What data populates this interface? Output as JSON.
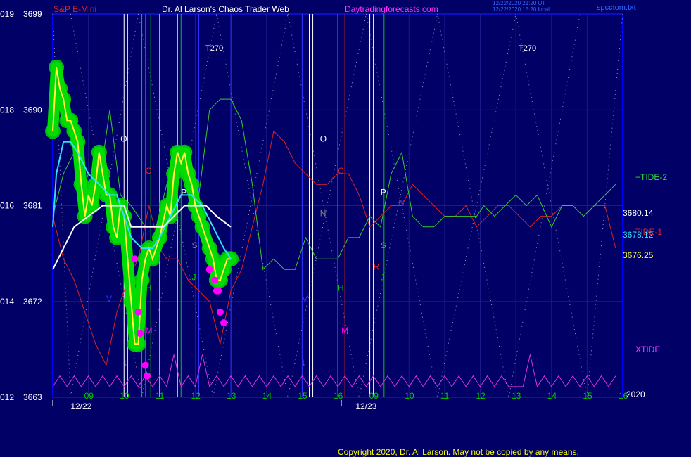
{
  "header": {
    "instrument": "S&P E-Mini",
    "title": "Dr. Al Larson's Chaos Trader Web",
    "site": "Daytradingforecasts.com",
    "timestamp_1": "12/22/2020 21:20 UT",
    "timestamp_2": "12/22/2020 15:20 local",
    "file": "spcctom.txt"
  },
  "footer": {
    "copyright": "Copyright 2020, Dr. Al Larson. May not be copied by any means."
  },
  "colors": {
    "background": "#000066",
    "price_green": "#00dd00",
    "price_yellow": "#ffff33",
    "price_magenta": "#ff00ff",
    "ma_cyan": "#33ddff",
    "ma_white": "#ffffff",
    "tide2": "#33cc33",
    "tide1": "#dd2222",
    "xtide": "#dd33dd",
    "grid": "#1a1a88",
    "frame": "#0000ff"
  },
  "chart_data": {
    "type": "line",
    "title": "S&P E-Mini",
    "ylim": [
      3663,
      3699
    ],
    "y_ticks": [
      {
        "left": "019",
        "value": "3699"
      },
      {
        "left": "018",
        "value": "3690"
      },
      {
        "left": "016",
        "value": "3681"
      },
      {
        "left": "014",
        "value": "3672"
      },
      {
        "left": "012",
        "value": "3663"
      }
    ],
    "x_hour_ticks": [
      "09",
      "10",
      "11",
      "12",
      "13",
      "14",
      "15",
      "16",
      "09",
      "10",
      "11",
      "12",
      "13",
      "14",
      "15",
      "16"
    ],
    "date_labels": [
      "12/22",
      "12/23"
    ],
    "year_label": "2020",
    "price_labels": {
      "upper_ma": "3680.14",
      "lower_ma": "3678.12",
      "last_price": "3676.25"
    },
    "series": [
      {
        "name": "+TIDE-2",
        "color": "#33cc33"
      },
      {
        "name": "TIDE-1",
        "color": "#dd2222"
      },
      {
        "name": "XTIDE",
        "color": "#dd33dd"
      }
    ],
    "price_path": [
      [
        0.0,
        3688
      ],
      [
        0.1,
        3694
      ],
      [
        0.2,
        3692
      ],
      [
        0.3,
        3691
      ],
      [
        0.4,
        3689
      ],
      [
        0.5,
        3689
      ],
      [
        0.6,
        3688
      ],
      [
        0.7,
        3687
      ],
      [
        0.8,
        3683
      ],
      [
        0.9,
        3680
      ],
      [
        1.0,
        3682
      ],
      [
        1.1,
        3681
      ],
      [
        1.2,
        3683
      ],
      [
        1.3,
        3686
      ],
      [
        1.4,
        3684
      ],
      [
        1.5,
        3682
      ],
      [
        1.6,
        3682
      ],
      [
        1.7,
        3679
      ],
      [
        1.8,
        3678
      ],
      [
        1.9,
        3681
      ],
      [
        2.0,
        3680
      ],
      [
        2.2,
        3672
      ],
      [
        2.3,
        3668
      ],
      [
        2.4,
        3668
      ],
      [
        2.5,
        3674
      ],
      [
        2.6,
        3676
      ],
      [
        2.7,
        3677
      ],
      [
        2.8,
        3676
      ],
      [
        3.0,
        3678
      ],
      [
        3.2,
        3681
      ],
      [
        3.3,
        3680
      ],
      [
        3.4,
        3684
      ],
      [
        3.5,
        3686
      ],
      [
        3.6,
        3685
      ],
      [
        3.7,
        3686
      ],
      [
        3.8,
        3684
      ],
      [
        3.9,
        3683
      ],
      [
        4.0,
        3681
      ],
      [
        4.1,
        3680
      ],
      [
        4.2,
        3679
      ],
      [
        4.4,
        3677
      ],
      [
        4.5,
        3676
      ],
      [
        4.6,
        3674
      ],
      [
        4.7,
        3674
      ],
      [
        4.8,
        3675
      ],
      [
        4.9,
        3676
      ],
      [
        5.0,
        3676
      ]
    ],
    "ma_cyan": [
      [
        0.0,
        3679
      ],
      [
        0.1,
        3684
      ],
      [
        0.3,
        3687
      ],
      [
        0.5,
        3687
      ],
      [
        0.7,
        3686
      ],
      [
        1.0,
        3684
      ],
      [
        1.3,
        3683
      ],
      [
        1.6,
        3682
      ],
      [
        1.8,
        3682
      ],
      [
        2.0,
        3680
      ],
      [
        2.2,
        3678
      ],
      [
        2.5,
        3677
      ],
      [
        2.8,
        3677
      ],
      [
        3.0,
        3678
      ],
      [
        3.3,
        3680
      ],
      [
        3.6,
        3682
      ],
      [
        3.9,
        3682
      ],
      [
        4.2,
        3681
      ],
      [
        4.5,
        3679
      ],
      [
        4.8,
        3677
      ],
      [
        5.0,
        3676
      ]
    ],
    "ma_white": [
      [
        0.0,
        3675
      ],
      [
        0.3,
        3677
      ],
      [
        0.6,
        3679
      ],
      [
        1.0,
        3680
      ],
      [
        1.4,
        3681
      ],
      [
        1.8,
        3681
      ],
      [
        2.0,
        3681
      ],
      [
        2.2,
        3679
      ],
      [
        2.5,
        3679
      ],
      [
        2.8,
        3679
      ],
      [
        3.1,
        3679
      ],
      [
        3.4,
        3680
      ],
      [
        3.7,
        3681
      ],
      [
        4.0,
        3681
      ],
      [
        4.3,
        3681
      ],
      [
        4.6,
        3680
      ],
      [
        5.0,
        3679
      ]
    ],
    "tide2_path": [
      [
        0.0,
        3680
      ],
      [
        0.3,
        3684
      ],
      [
        0.6,
        3686
      ],
      [
        0.8,
        3682
      ],
      [
        1.0,
        3684
      ],
      [
        1.3,
        3683
      ],
      [
        1.6,
        3690
      ],
      [
        1.9,
        3682
      ],
      [
        2.2,
        3681
      ],
      [
        2.6,
        3679
      ],
      [
        2.9,
        3679
      ],
      [
        3.2,
        3683
      ],
      [
        3.5,
        3685
      ],
      [
        3.8,
        3682
      ],
      [
        4.1,
        3682
      ],
      [
        4.4,
        3690
      ],
      [
        4.7,
        3691
      ],
      [
        5.0,
        3691
      ],
      [
        5.3,
        3689
      ],
      [
        5.6,
        3683
      ],
      [
        5.9,
        3675
      ],
      [
        6.2,
        3676
      ],
      [
        6.5,
        3675
      ],
      [
        6.8,
        3675
      ],
      [
        7.1,
        3678
      ],
      [
        7.4,
        3676
      ],
      [
        7.7,
        3676
      ],
      [
        8.0,
        3676
      ],
      [
        8.3,
        3678
      ],
      [
        8.6,
        3678
      ],
      [
        8.9,
        3680
      ],
      [
        9.2,
        3679
      ],
      [
        9.5,
        3684
      ],
      [
        9.8,
        3686
      ],
      [
        10.1,
        3680
      ],
      [
        10.4,
        3679
      ],
      [
        10.7,
        3679
      ],
      [
        11.0,
        3680
      ],
      [
        11.3,
        3680
      ],
      [
        11.6,
        3680
      ],
      [
        11.9,
        3680
      ],
      [
        12.1,
        3681
      ],
      [
        12.4,
        3680
      ],
      [
        12.7,
        3681
      ],
      [
        13.0,
        3682
      ],
      [
        13.3,
        3681
      ],
      [
        13.6,
        3682
      ],
      [
        14.0,
        3679
      ],
      [
        14.3,
        3681
      ],
      [
        14.6,
        3681
      ],
      [
        14.9,
        3680
      ],
      [
        15.2,
        3681
      ],
      [
        15.5,
        3682
      ],
      [
        15.8,
        3683
      ]
    ],
    "tide1_path": [
      [
        0.0,
        3680
      ],
      [
        0.3,
        3676
      ],
      [
        0.6,
        3674
      ],
      [
        0.9,
        3671
      ],
      [
        1.2,
        3668
      ],
      [
        1.5,
        3666
      ],
      [
        1.8,
        3671
      ],
      [
        2.1,
        3674
      ],
      [
        2.4,
        3676
      ],
      [
        2.7,
        3681
      ],
      [
        3.0,
        3677
      ],
      [
        3.2,
        3676
      ],
      [
        3.5,
        3676
      ],
      [
        3.8,
        3674
      ],
      [
        4.1,
        3673
      ],
      [
        4.4,
        3672
      ],
      [
        4.7,
        3668
      ],
      [
        5.0,
        3673
      ],
      [
        5.3,
        3675
      ],
      [
        5.6,
        3679
      ],
      [
        5.9,
        3683
      ],
      [
        6.2,
        3688
      ],
      [
        6.5,
        3687
      ],
      [
        6.8,
        3685
      ],
      [
        7.1,
        3684
      ],
      [
        7.4,
        3683
      ],
      [
        7.7,
        3683
      ],
      [
        8.0,
        3684
      ],
      [
        8.3,
        3684
      ],
      [
        8.6,
        3682
      ],
      [
        8.9,
        3679
      ],
      [
        9.2,
        3680
      ],
      [
        9.5,
        3681
      ],
      [
        9.8,
        3681
      ],
      [
        10.1,
        3683
      ],
      [
        10.4,
        3682
      ],
      [
        10.7,
        3681
      ],
      [
        11.0,
        3680
      ],
      [
        11.3,
        3680
      ],
      [
        11.6,
        3681
      ],
      [
        11.9,
        3679
      ],
      [
        12.2,
        3680
      ],
      [
        12.5,
        3681
      ],
      [
        12.8,
        3681
      ],
      [
        13.1,
        3680
      ],
      [
        13.4,
        3679
      ],
      [
        13.7,
        3680
      ],
      [
        14.0,
        3680
      ],
      [
        14.3,
        3681
      ],
      [
        14.6,
        3681
      ],
      [
        14.9,
        3680
      ],
      [
        15.2,
        3681
      ],
      [
        15.5,
        3681
      ],
      [
        15.8,
        3677
      ]
    ],
    "xtide_path": [
      [
        0.0,
        3664
      ],
      [
        0.2,
        3665
      ],
      [
        0.4,
        3664
      ],
      [
        0.6,
        3665
      ],
      [
        0.8,
        3664
      ],
      [
        1.0,
        3665
      ],
      [
        1.2,
        3664
      ],
      [
        1.4,
        3665
      ],
      [
        1.6,
        3664
      ],
      [
        1.8,
        3665
      ],
      [
        2.0,
        3664
      ],
      [
        2.2,
        3665
      ],
      [
        2.4,
        3664
      ],
      [
        2.6,
        3665
      ],
      [
        2.8,
        3664
      ],
      [
        3.0,
        3665
      ],
      [
        3.2,
        3664
      ],
      [
        3.4,
        3667
      ],
      [
        3.6,
        3664
      ],
      [
        3.8,
        3665
      ],
      [
        4.0,
        3664
      ],
      [
        4.2,
        3667
      ],
      [
        4.4,
        3664
      ],
      [
        4.6,
        3665
      ],
      [
        4.8,
        3664
      ],
      [
        5.0,
        3665
      ],
      [
        5.2,
        3664
      ],
      [
        5.4,
        3665
      ],
      [
        5.6,
        3664
      ],
      [
        5.8,
        3665
      ],
      [
        6.0,
        3664
      ],
      [
        6.2,
        3665
      ],
      [
        6.4,
        3664
      ],
      [
        6.6,
        3665
      ],
      [
        6.8,
        3664
      ],
      [
        7.0,
        3665
      ],
      [
        7.2,
        3664
      ],
      [
        7.4,
        3665
      ],
      [
        7.6,
        3664
      ],
      [
        7.8,
        3665
      ],
      [
        8.0,
        3664
      ],
      [
        8.2,
        3665
      ],
      [
        8.4,
        3664
      ],
      [
        8.6,
        3665
      ],
      [
        8.8,
        3664
      ],
      [
        9.0,
        3665
      ],
      [
        9.2,
        3664
      ],
      [
        9.4,
        3665
      ],
      [
        9.6,
        3664
      ],
      [
        9.8,
        3665
      ],
      [
        10.0,
        3664
      ],
      [
        10.2,
        3665
      ],
      [
        10.4,
        3664
      ],
      [
        10.6,
        3665
      ],
      [
        10.8,
        3664
      ],
      [
        11.0,
        3665
      ],
      [
        11.2,
        3664
      ],
      [
        11.4,
        3665
      ],
      [
        11.6,
        3664
      ],
      [
        11.8,
        3665
      ],
      [
        12.0,
        3664
      ],
      [
        12.2,
        3665
      ],
      [
        12.4,
        3664
      ],
      [
        12.6,
        3665
      ],
      [
        12.8,
        3664
      ],
      [
        13.0,
        3664
      ],
      [
        13.2,
        3664
      ],
      [
        13.4,
        3667
      ],
      [
        13.6,
        3664
      ],
      [
        13.8,
        3665
      ],
      [
        14.0,
        3664
      ],
      [
        14.2,
        3665
      ],
      [
        14.4,
        3664
      ],
      [
        14.6,
        3665
      ],
      [
        14.8,
        3664
      ],
      [
        15.0,
        3665
      ],
      [
        15.2,
        3664
      ],
      [
        15.4,
        3665
      ],
      [
        15.6,
        3664
      ],
      [
        15.8,
        3665
      ]
    ],
    "magenta_dots": [
      [
        2.3,
        3676
      ],
      [
        2.4,
        3671
      ],
      [
        2.45,
        3669
      ],
      [
        2.6,
        3666
      ],
      [
        2.65,
        3665
      ],
      [
        4.4,
        3675
      ],
      [
        4.55,
        3674
      ],
      [
        4.6,
        3673
      ],
      [
        4.65,
        3673
      ],
      [
        4.7,
        3671
      ],
      [
        4.8,
        3670
      ]
    ],
    "verticals": [
      {
        "x": 2.0,
        "color": "#ffffff"
      },
      {
        "x": 2.1,
        "color": "#ffffff"
      },
      {
        "x": 2.5,
        "color": "#00cc00"
      },
      {
        "x": 2.6,
        "color": "#dd2222"
      },
      {
        "x": 2.75,
        "color": "#00cc00"
      },
      {
        "x": 3.0,
        "color": "#ffffff"
      },
      {
        "x": 3.5,
        "color": "#ffffff"
      },
      {
        "x": 3.6,
        "color": "#00cc00"
      },
      {
        "x": 4.1,
        "color": "#3333ff"
      },
      {
        "x": 5.0,
        "color": "#3333ff"
      },
      {
        "x": 7.0,
        "color": "#3333ff"
      },
      {
        "x": 7.2,
        "color": "#ffffff"
      },
      {
        "x": 7.3,
        "color": "#ffffff"
      },
      {
        "x": 8.0,
        "color": "#00cc00"
      },
      {
        "x": 8.2,
        "color": "#dd2222"
      },
      {
        "x": 8.9,
        "color": "#ffffff"
      },
      {
        "x": 9.0,
        "color": "#ffffff"
      },
      {
        "x": 9.3,
        "color": "#00cc00"
      }
    ],
    "markers": [
      {
        "text": "O",
        "color": "#ffffff",
        "x": 1.9,
        "y": 3687
      },
      {
        "text": "C",
        "color": "#dd2222",
        "x": 2.6,
        "y": 3684
      },
      {
        "text": "P",
        "color": "#ffffff",
        "x": 3.6,
        "y": 3682
      },
      {
        "text": "S",
        "color": "#888888",
        "x": 3.9,
        "y": 3677
      },
      {
        "text": "J",
        "color": "#00cc00",
        "x": 3.9,
        "y": 3674
      },
      {
        "text": "V",
        "color": "#3333ff",
        "x": 1.5,
        "y": 3672
      },
      {
        "text": "H",
        "color": "#00cc00",
        "x": 2.6,
        "y": 3673
      },
      {
        "text": "M",
        "color": "#ff00ff",
        "x": 2.6,
        "y": 3669
      },
      {
        "text": "t",
        "color": "#888888",
        "x": 2.0,
        "y": 3666
      },
      {
        "text": "O",
        "color": "#ffffff",
        "x": 7.5,
        "y": 3687
      },
      {
        "text": "C",
        "color": "#dd2222",
        "x": 8.0,
        "y": 3684
      },
      {
        "text": "N",
        "color": "#888888",
        "x": 7.5,
        "y": 3680
      },
      {
        "text": "P",
        "color": "#ffffff",
        "x": 9.2,
        "y": 3682
      },
      {
        "text": "S",
        "color": "#888888",
        "x": 9.2,
        "y": 3677
      },
      {
        "text": "J",
        "color": "#00cc00",
        "x": 9.2,
        "y": 3674
      },
      {
        "text": "R",
        "color": "#dd2222",
        "x": 9.0,
        "y": 3675
      },
      {
        "text": "V",
        "color": "#3333ff",
        "x": 7.0,
        "y": 3672
      },
      {
        "text": "H",
        "color": "#00cc00",
        "x": 8.0,
        "y": 3673
      },
      {
        "text": "M",
        "color": "#ff00ff",
        "x": 8.1,
        "y": 3669
      },
      {
        "text": "t",
        "color": "#888888",
        "x": 7.0,
        "y": 3666
      },
      {
        "text": "N",
        "color": "#3333ff",
        "x": 9.7,
        "y": 3681
      }
    ],
    "annotations": [
      "T270",
      "T270"
    ]
  }
}
